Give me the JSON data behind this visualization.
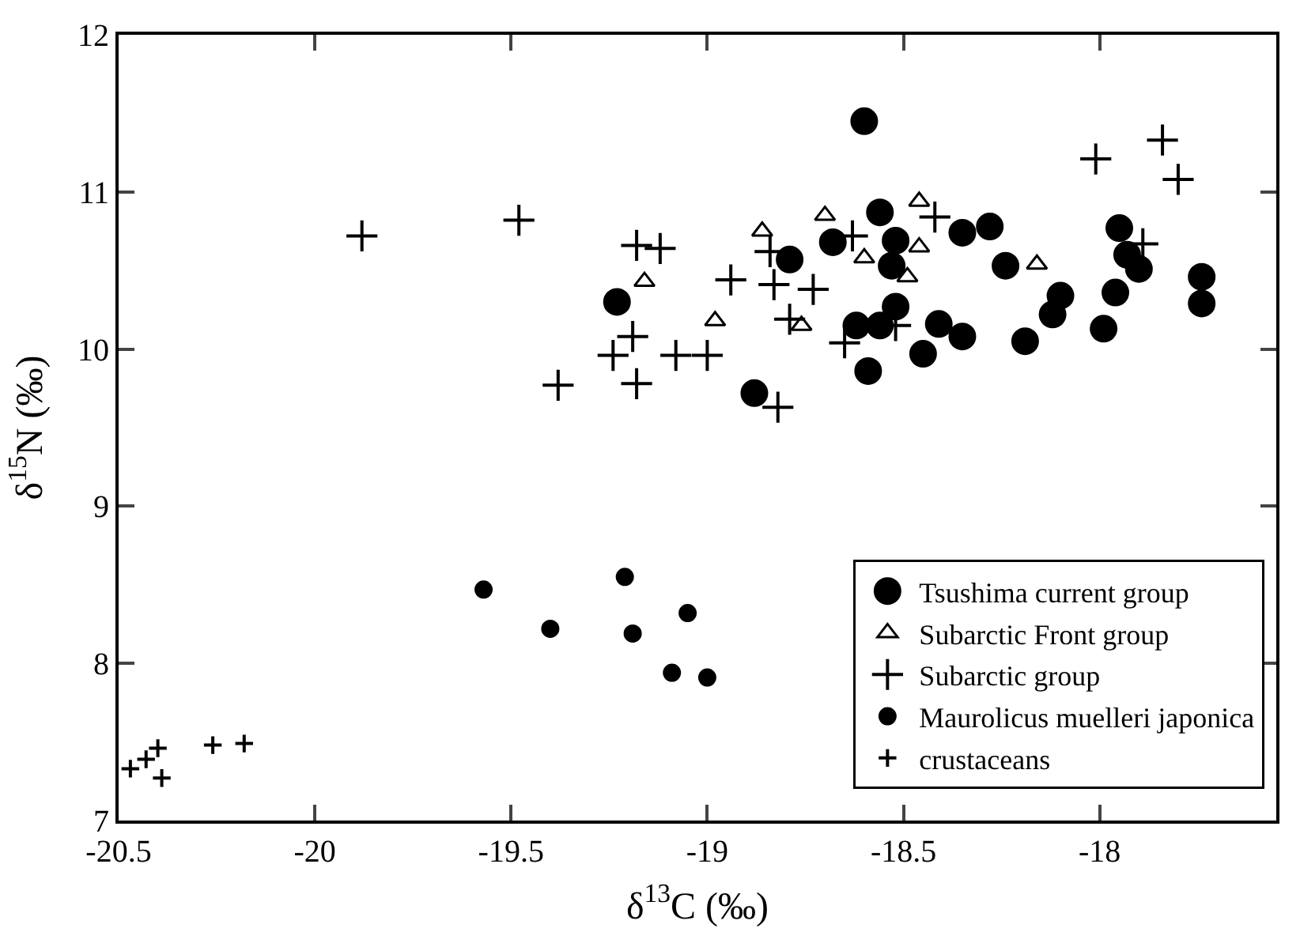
{
  "chart_data": {
    "type": "scatter",
    "xlabel": "δ$^{13}$C (‰)",
    "ylabel": "δ$^{15}$N (‰)",
    "xlim": [
      -20.5,
      -17.55
    ],
    "ylim": [
      7,
      12
    ],
    "xticks": [
      -20.5,
      -20,
      -19.5,
      -19,
      -18.5,
      -18
    ],
    "yticks": [
      7,
      8,
      9,
      10,
      11,
      12
    ],
    "legend": "bottom right",
    "series": [
      {
        "name": "Tsushima current group",
        "color": "#000000",
        "marker": "circle",
        "x": [
          -18.6,
          -18.56,
          -18.68,
          -18.79,
          -18.52,
          -18.53,
          -18.35,
          -18.28,
          -18.24,
          -17.95,
          -17.93,
          -17.9,
          -17.74,
          -17.74,
          -18.52,
          -18.62,
          -18.56,
          -18.41,
          -18.35,
          -18.45,
          -18.59,
          -18.88,
          -18.19,
          -18.1,
          -18.12,
          -17.96,
          -17.99,
          -19.23
        ],
        "values": [
          11.45,
          10.87,
          10.68,
          10.57,
          10.69,
          10.53,
          10.74,
          10.78,
          10.53,
          10.77,
          10.6,
          10.51,
          10.46,
          10.29,
          10.27,
          10.15,
          10.15,
          10.16,
          10.08,
          9.97,
          9.86,
          9.72,
          10.05,
          10.34,
          10.22,
          10.36,
          10.13,
          10.3
        ]
      },
      {
        "name": "Subarctic Front group",
        "color": "#000000",
        "marker": "triangle",
        "x": [
          -18.7,
          -18.46,
          -18.86,
          -18.6,
          -18.46,
          -18.49,
          -18.16,
          -19.16,
          -18.98,
          -18.76
        ],
        "values": [
          10.85,
          10.94,
          10.75,
          10.58,
          10.65,
          10.46,
          10.54,
          10.43,
          10.18,
          10.15
        ]
      },
      {
        "name": "Subarctic group",
        "color": "#000000",
        "marker": "cross",
        "x": [
          -19.12,
          -18.84,
          -18.94,
          -18.83,
          -18.73,
          -18.42,
          -18.63,
          -18.52,
          -18.65,
          -18.79,
          -19.08,
          -19.0,
          -18.82,
          -18.01,
          -17.84,
          -17.8,
          -17.89,
          -19.18,
          -19.88,
          -19.48,
          -19.18,
          -19.19,
          -19.24,
          -19.38
        ],
        "values": [
          10.64,
          10.62,
          10.44,
          10.41,
          10.38,
          10.84,
          10.72,
          10.15,
          10.04,
          10.19,
          9.96,
          9.96,
          9.63,
          11.21,
          11.33,
          11.08,
          10.67,
          9.78,
          10.72,
          10.82,
          10.66,
          10.08,
          9.96,
          9.77
        ]
      },
      {
        "name": "Maurolicus muelleri japonica",
        "color": "#000000",
        "marker": "circle",
        "x": [
          -19.57,
          -19.4,
          -19.21,
          -19.19,
          -19.05,
          -19.09,
          -19.0
        ],
        "values": [
          8.47,
          8.22,
          8.55,
          8.19,
          8.32,
          7.94,
          7.91
        ]
      },
      {
        "name": "crustaceans",
        "color": "#000000",
        "marker": "cross",
        "x": [
          -20.47,
          -20.43,
          -20.4,
          -20.39,
          -20.26,
          -20.18
        ],
        "values": [
          7.33,
          7.39,
          7.46,
          7.27,
          7.48,
          7.49
        ]
      }
    ]
  }
}
